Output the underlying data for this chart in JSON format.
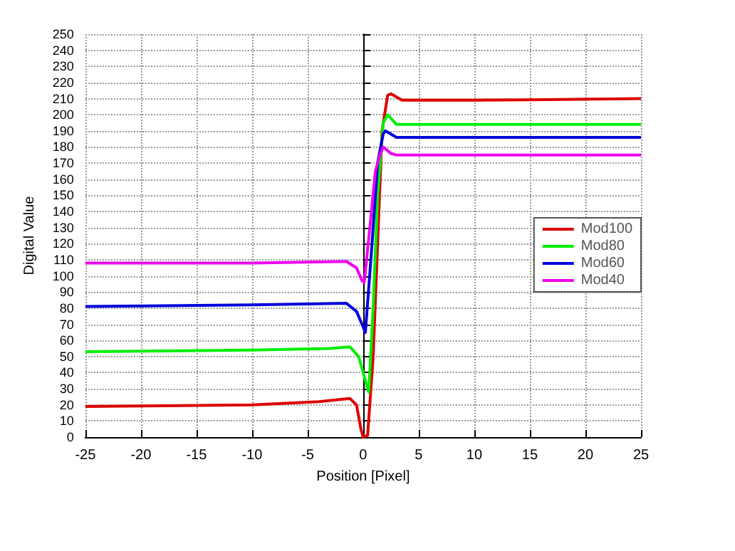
{
  "chart_data": {
    "type": "line",
    "xlabel": "Position [Pixel]",
    "ylabel": "Digital Value",
    "xlim": [
      -25,
      25
    ],
    "ylim": [
      0,
      250
    ],
    "xticks": [
      -25,
      -20,
      -15,
      -10,
      -5,
      0,
      5,
      10,
      15,
      20,
      25
    ],
    "yticks": [
      0,
      10,
      20,
      30,
      40,
      50,
      60,
      70,
      80,
      90,
      100,
      110,
      120,
      130,
      140,
      150,
      160,
      170,
      180,
      190,
      200,
      210,
      220,
      230,
      240,
      250
    ],
    "grid": true,
    "legend": "right",
    "marker": "none",
    "line_style": "solid",
    "series": [
      {
        "name": "Mod100",
        "color": "#dd0000",
        "x": [
          -25,
          -10,
          -4,
          -1.2,
          -0.6,
          -0.2,
          0,
          0.4,
          0.9,
          1.3,
          1.7,
          2.2,
          2.5,
          3.5,
          10,
          25
        ],
        "values": [
          19,
          20,
          22,
          24,
          20,
          5,
          0,
          1,
          50,
          120,
          190,
          212,
          213,
          209,
          209,
          210
        ]
      },
      {
        "name": "Mod80",
        "color": "#00ee00",
        "x": [
          -25,
          -10,
          -3,
          -1.2,
          -0.4,
          0.2,
          0.5,
          0.9,
          1.3,
          1.8,
          2.2,
          3,
          25
        ],
        "values": [
          53,
          54,
          55,
          56,
          50,
          35,
          28,
          80,
          150,
          195,
          200,
          194,
          194
        ]
      },
      {
        "name": "Mod60",
        "color": "#0000dd",
        "x": [
          -25,
          -10,
          -1.5,
          -0.6,
          -0.1,
          0.2,
          0.8,
          1.3,
          1.8,
          2,
          3,
          25
        ],
        "values": [
          81,
          82,
          83,
          78,
          70,
          65,
          120,
          170,
          188,
          190,
          186,
          186
        ]
      },
      {
        "name": "Mod40",
        "color": "#ee00ee",
        "x": [
          -25,
          -10,
          -1.5,
          -0.6,
          -0.1,
          0.1,
          0.6,
          1.1,
          1.5,
          1.8,
          2.5,
          3,
          25
        ],
        "values": [
          108,
          108,
          109,
          105,
          97,
          96,
          130,
          165,
          175,
          180,
          176,
          175,
          175
        ]
      }
    ]
  }
}
